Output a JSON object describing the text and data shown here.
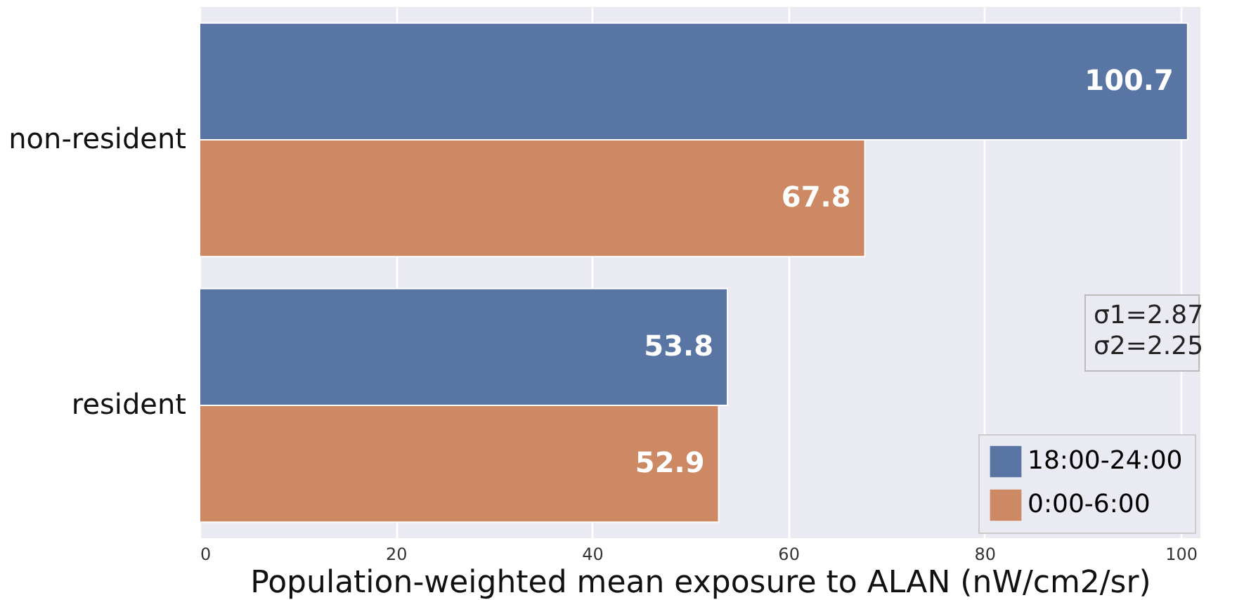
{
  "chart_data": {
    "type": "bar",
    "orientation": "horizontal",
    "categories": [
      "non-resident",
      "resident"
    ],
    "series": [
      {
        "name": "18:00-24:00",
        "color": "#5875a4",
        "values": [
          100.7,
          53.8
        ]
      },
      {
        "name": "0:00-6:00",
        "color": "#cc8963",
        "values": [
          67.8,
          52.9
        ]
      }
    ],
    "xlabel": "Population-weighted mean exposure to ALAN (nW/cm2/sr)",
    "xlim": [
      0,
      102
    ],
    "xticks": [
      0,
      20,
      40,
      60,
      80,
      100
    ],
    "annotations": [
      "σ1=2.87\nσ2=2.25"
    ],
    "data_labels": true,
    "grid": "x",
    "legend": "bottom right"
  }
}
